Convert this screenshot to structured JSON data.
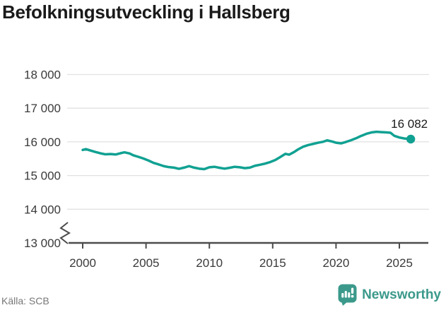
{
  "title": "Befolkningsutveckling i Hallsberg",
  "source": "Källa: SCB",
  "brand": {
    "name": "Newsworthy"
  },
  "colors": {
    "line": "#11a192",
    "grid": "#e1e1e1",
    "axis": "#4c4c4c",
    "title": "#1a1a1a",
    "tick_label": "#3a3a3a",
    "source": "#777777",
    "brand": "#3b998b"
  },
  "chart_data": {
    "type": "line",
    "title": "Befolkningsutveckling i Hallsberg",
    "xlabel": "",
    "ylabel": "",
    "grid": "horizontal",
    "axis_break_below_min": true,
    "legend": "none",
    "xlim": [
      1998.8,
      2027.3
    ],
    "ylim": [
      13000,
      18400
    ],
    "xticks": [
      2000,
      2005,
      2010,
      2015,
      2020,
      2025
    ],
    "xtick_labels": [
      "2000",
      "2005",
      "2010",
      "2015",
      "2020",
      "2025"
    ],
    "yticks": [
      13000,
      14000,
      15000,
      16000,
      17000,
      18000
    ],
    "ytick_labels": [
      "13 000",
      "14 000",
      "15 000",
      "16 000",
      "17 000",
      "18 000"
    ],
    "series_name": "Befolkning",
    "x": [
      2000.0,
      2000.25,
      2000.6,
      2001.0,
      2001.4,
      2001.8,
      2002.2,
      2002.6,
      2003.0,
      2003.3,
      2003.7,
      2004.0,
      2004.4,
      2004.8,
      2005.2,
      2005.6,
      2006.0,
      2006.4,
      2006.8,
      2007.2,
      2007.6,
      2008.0,
      2008.4,
      2008.8,
      2009.2,
      2009.6,
      2010.0,
      2010.4,
      2010.8,
      2011.2,
      2011.6,
      2012.0,
      2012.4,
      2012.8,
      2013.2,
      2013.6,
      2014.0,
      2014.4,
      2014.8,
      2015.2,
      2015.6,
      2016.0,
      2016.3,
      2016.7,
      2017.0,
      2017.4,
      2017.8,
      2018.2,
      2018.6,
      2019.0,
      2019.3,
      2019.7,
      2020.0,
      2020.4,
      2020.8,
      2021.2,
      2021.6,
      2022.0,
      2022.4,
      2022.8,
      2023.2,
      2023.6,
      2024.0,
      2024.3,
      2024.6,
      2025.0,
      2025.4,
      2025.9
    ],
    "y": [
      15760,
      15785,
      15745,
      15700,
      15660,
      15630,
      15640,
      15625,
      15665,
      15690,
      15655,
      15600,
      15555,
      15505,
      15445,
      15375,
      15330,
      15280,
      15250,
      15235,
      15200,
      15235,
      15280,
      15235,
      15205,
      15190,
      15245,
      15260,
      15230,
      15205,
      15230,
      15260,
      15245,
      15220,
      15235,
      15290,
      15320,
      15355,
      15400,
      15460,
      15550,
      15645,
      15620,
      15700,
      15775,
      15855,
      15905,
      15940,
      15975,
      16005,
      16045,
      16010,
      15975,
      15955,
      16000,
      16050,
      16110,
      16180,
      16240,
      16280,
      16300,
      16290,
      16280,
      16270,
      16180,
      16130,
      16100,
      16082
    ],
    "end_marker": {
      "year": 2025.9,
      "value": 16082,
      "label": "16 082"
    }
  }
}
